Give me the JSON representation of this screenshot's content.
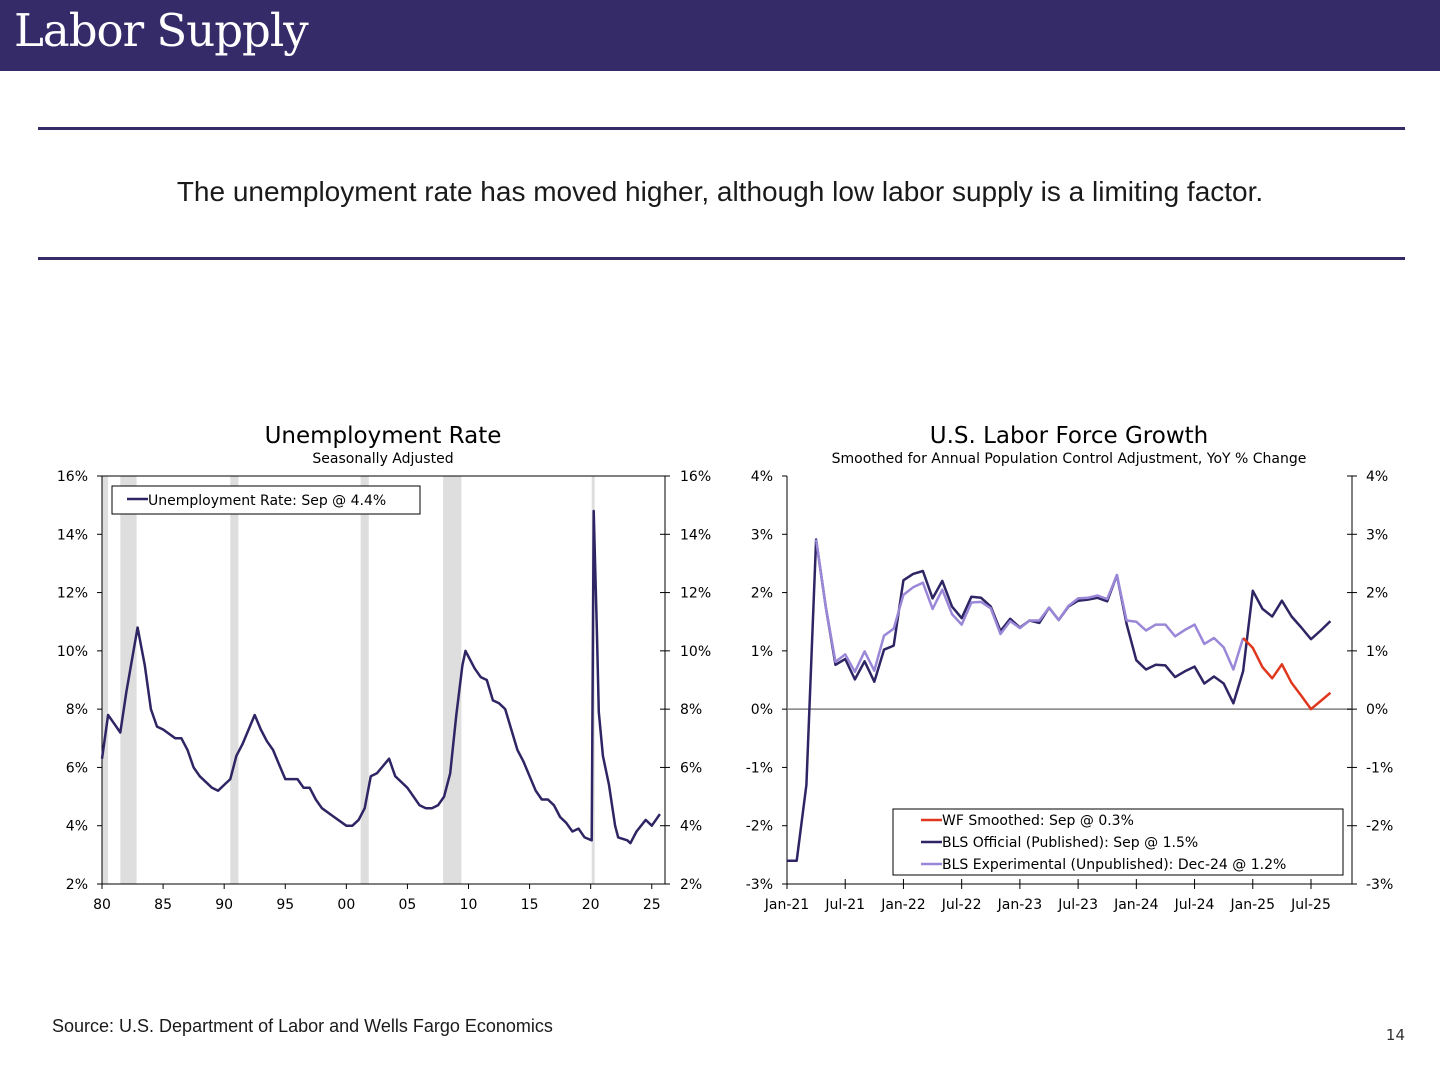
{
  "header": {
    "title": "Labor Supply"
  },
  "subtitle": "The unemployment rate has moved higher, although low labor supply is a limiting factor.",
  "footer": {
    "source": "Source: U.S. Department of Labor and Wells Fargo Economics",
    "page_number": "14"
  },
  "colors": {
    "brand": "#362B69",
    "bls_official": "#2E2664",
    "bls_experimental": "#9B87D8",
    "wf_smoothed": "#E0381F",
    "recession": "#DEDEDE"
  },
  "chart_data": [
    {
      "type": "line",
      "title": "Unemployment Rate",
      "subtitle": "Seasonally Adjusted",
      "ylim": [
        2,
        16
      ],
      "yticks": [
        "2%",
        "4%",
        "6%",
        "8%",
        "10%",
        "12%",
        "14%",
        "16%"
      ],
      "ytick_values": [
        2,
        4,
        6,
        8,
        10,
        12,
        14,
        16
      ],
      "xlim": [
        "1980-01",
        "2026-02"
      ],
      "xticks": [
        "80",
        "85",
        "90",
        "95",
        "00",
        "05",
        "10",
        "15",
        "20",
        "25"
      ],
      "xtick_years": [
        1980,
        1985,
        1990,
        1995,
        2000,
        2005,
        2010,
        2015,
        2020,
        2025
      ],
      "legend": "top-left",
      "recessions": [
        [
          "1980-01",
          "1980-07"
        ],
        [
          "1981-07",
          "1982-11"
        ],
        [
          "1990-07",
          "1991-03"
        ],
        [
          "2001-03",
          "2001-11"
        ],
        [
          "2007-12",
          "2009-06"
        ],
        [
          "2020-02",
          "2020-04"
        ]
      ],
      "series": [
        {
          "name": "Unemployment Rate: Sep @ 4.4%",
          "x": [
            "1980-01",
            "1980-07",
            "1981-01",
            "1981-07",
            "1982-01",
            "1982-07",
            "1982-12",
            "1983-07",
            "1984-01",
            "1984-07",
            "1985-01",
            "1986-01",
            "1986-07",
            "1987-01",
            "1987-07",
            "1988-01",
            "1989-01",
            "1989-07",
            "1990-01",
            "1990-07",
            "1991-01",
            "1991-07",
            "1992-07",
            "1993-01",
            "1993-07",
            "1994-01",
            "1994-07",
            "1995-01",
            "1996-01",
            "1996-07",
            "1997-01",
            "1997-07",
            "1998-01",
            "1999-01",
            "2000-01",
            "2000-07",
            "2001-01",
            "2001-07",
            "2002-01",
            "2002-07",
            "2003-07",
            "2004-01",
            "2004-07",
            "2005-01",
            "2006-01",
            "2006-07",
            "2007-01",
            "2007-07",
            "2008-01",
            "2008-07",
            "2009-01",
            "2009-07",
            "2009-10",
            "2010-07",
            "2011-01",
            "2011-07",
            "2012-01",
            "2012-07",
            "2013-01",
            "2013-07",
            "2014-01",
            "2014-07",
            "2015-01",
            "2015-07",
            "2016-01",
            "2016-07",
            "2017-01",
            "2017-07",
            "2018-01",
            "2018-07",
            "2019-01",
            "2019-07",
            "2020-02",
            "2020-04",
            "2020-07",
            "2020-09",
            "2021-01",
            "2021-07",
            "2022-01",
            "2022-04",
            "2023-01",
            "2023-04",
            "2023-10",
            "2024-07",
            "2025-01",
            "2025-09"
          ],
          "values": [
            6.3,
            7.8,
            7.5,
            7.2,
            8.6,
            9.8,
            10.8,
            9.5,
            8.0,
            7.4,
            7.3,
            7.0,
            7.0,
            6.6,
            6.0,
            5.7,
            5.3,
            5.2,
            5.4,
            5.6,
            6.4,
            6.8,
            7.8,
            7.3,
            6.9,
            6.6,
            6.1,
            5.6,
            5.6,
            5.3,
            5.3,
            4.9,
            4.6,
            4.3,
            4.0,
            4.0,
            4.2,
            4.6,
            5.7,
            5.8,
            6.3,
            5.7,
            5.5,
            5.3,
            4.7,
            4.6,
            4.6,
            4.7,
            5.0,
            5.8,
            7.8,
            9.5,
            10.0,
            9.4,
            9.1,
            9.0,
            8.3,
            8.2,
            8.0,
            7.3,
            6.6,
            6.2,
            5.7,
            5.2,
            4.9,
            4.9,
            4.7,
            4.3,
            4.1,
            3.8,
            3.9,
            3.6,
            3.5,
            14.8,
            10.8,
            7.9,
            6.4,
            5.4,
            4.0,
            3.6,
            3.5,
            3.4,
            3.8,
            4.2,
            4.0,
            4.4
          ]
        }
      ]
    },
    {
      "type": "line",
      "title": "U.S. Labor Force Growth",
      "subtitle": "Smoothed for Annual Population Control Adjustment, YoY % Change",
      "ylim": [
        -3,
        4
      ],
      "yticks": [
        "-3%",
        "-2%",
        "-1%",
        "0%",
        "1%",
        "2%",
        "3%",
        "4%"
      ],
      "ytick_values": [
        -3,
        -2,
        -1,
        0,
        1,
        2,
        3,
        4
      ],
      "xticks": [
        "Jan-21",
        "Jul-21",
        "Jan-22",
        "Jul-22",
        "Jan-23",
        "Jul-23",
        "Jan-24",
        "Jul-24",
        "Jan-25",
        "Jul-25"
      ],
      "x_start": "Jan-21",
      "legend": "bottom-right",
      "series": [
        {
          "name": "WF Smoothed: Sep @ 0.3%",
          "color_key": "wf_smoothed",
          "start": "Dec-24",
          "values": [
            1.22,
            1.05,
            0.72,
            0.53,
            0.77,
            0.45,
            0.23,
            0.0,
            0.14,
            0.28
          ]
        },
        {
          "name": "BLS Official (Published): Sep @ 1.5%",
          "color_key": "bls_official",
          "start": "Jan-21",
          "values": [
            -2.6,
            -2.6,
            -1.3,
            2.91,
            1.75,
            0.76,
            0.86,
            0.51,
            0.82,
            0.47,
            1.02,
            1.09,
            2.21,
            2.32,
            2.37,
            1.9,
            2.2,
            1.76,
            1.56,
            1.93,
            1.91,
            1.76,
            1.34,
            1.55,
            1.4,
            1.52,
            1.48,
            1.74,
            1.53,
            1.76,
            1.86,
            1.88,
            1.91,
            1.85,
            2.3,
            1.46,
            0.84,
            0.68,
            0.76,
            0.75,
            0.55,
            0.65,
            0.73,
            0.44,
            0.56,
            0.44,
            0.1,
            0.65,
            2.03,
            1.72,
            1.59,
            1.86,
            1.59,
            1.4,
            1.2,
            1.35,
            1.51
          ]
        },
        {
          "name": "BLS Experimental (Unpublished): Dec-24 @ 1.2%",
          "color_key": "bls_experimental",
          "start": "Apr-21",
          "values": [
            2.91,
            1.75,
            0.81,
            0.94,
            0.64,
            0.99,
            0.66,
            1.26,
            1.38,
            1.96,
            2.09,
            2.17,
            1.72,
            2.05,
            1.63,
            1.45,
            1.83,
            1.84,
            1.73,
            1.29,
            1.51,
            1.39,
            1.52,
            1.52,
            1.74,
            1.53,
            1.77,
            1.9,
            1.91,
            1.95,
            1.89,
            2.3,
            1.52,
            1.5,
            1.35,
            1.45,
            1.45,
            1.25,
            1.36,
            1.45,
            1.12,
            1.22,
            1.06,
            0.68,
            1.22
          ]
        }
      ]
    }
  ]
}
